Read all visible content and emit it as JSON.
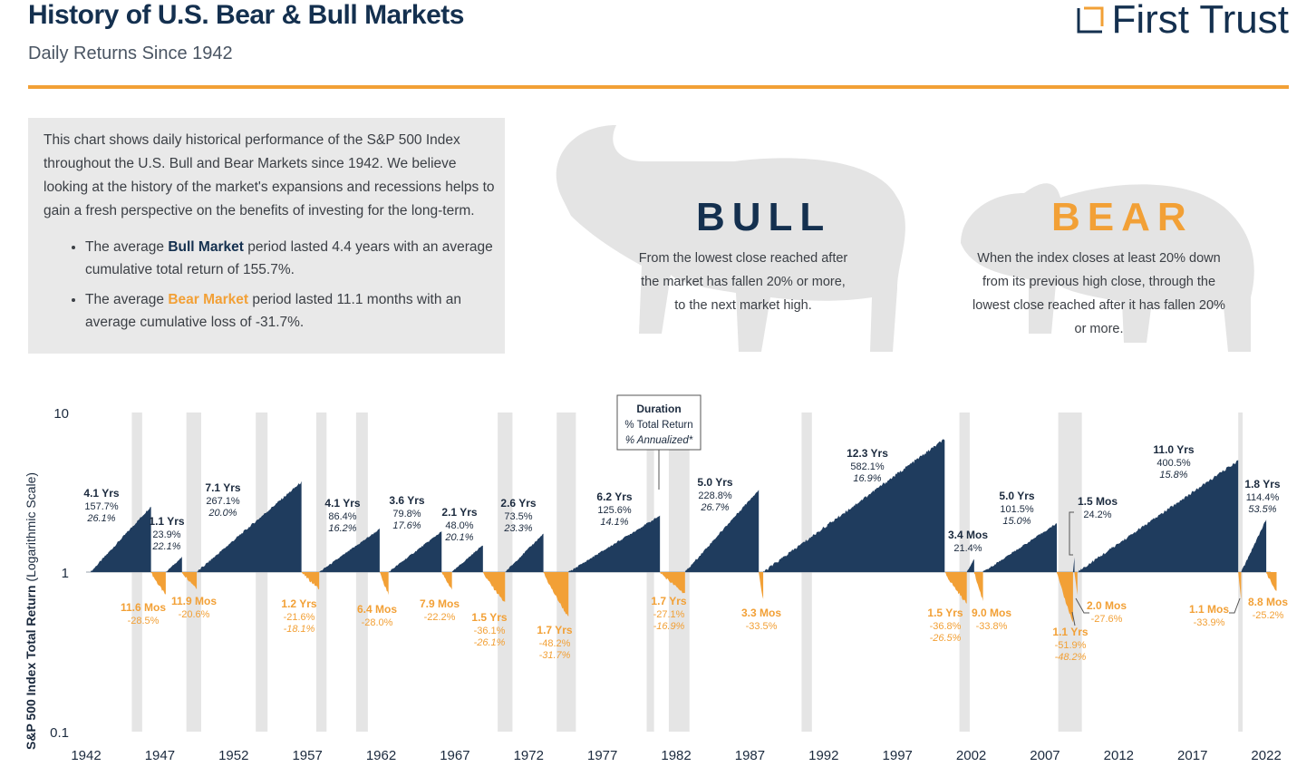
{
  "header": {
    "title": "History of U.S. Bear & Bull Markets",
    "subtitle": "Daily Returns Since 1942",
    "logo_text": "First Trust"
  },
  "intro": {
    "paragraph": "This chart shows daily historical performance of the S&P 500 Index throughout the U.S. Bull and Bear Markets since 1942. We believe looking at the history of the market's expansions and recessions helps to gain a fresh perspective on the benefits of investing for the long-term.",
    "bullet1_pre": "The average ",
    "bullet1_kw": "Bull Market",
    "bullet1_post": " period lasted 4.4 years with an average cumulative total return of 155.7%.",
    "bullet2_pre": "The average ",
    "bullet2_kw": "Bear Market",
    "bullet2_post": " period lasted 11.1 months with an average cumulative loss of -31.7%."
  },
  "definitions": {
    "bull_title": "BULL",
    "bull_text": "From the lowest close reached after the market has fallen 20% or more, to the next market high.",
    "bear_title": "BEAR",
    "bear_text": "When the index closes at least 20% down from its previous high close, through the lowest close reached after it has fallen 20% or more."
  },
  "colors": {
    "bull": "#1f3c5e",
    "bear": "#f2a036",
    "recession": "#e5e5e5",
    "accent": "#f2a036"
  },
  "chart_data": {
    "type": "area",
    "ylabel": "S&P 500 Index Total Return",
    "ylabel_note": "(Logarithmic Scale)",
    "y_scale": "log",
    "ylim": [
      0.1,
      10
    ],
    "y_ticks": [
      "10",
      "1",
      "0.1"
    ],
    "x_ticks": [
      "1942",
      "1947",
      "1952",
      "1957",
      "1962",
      "1967",
      "1972",
      "1977",
      "1982",
      "1987",
      "1992",
      "1997",
      "2002",
      "2007",
      "2012",
      "2017",
      "2022"
    ],
    "legend_box": [
      "Duration",
      "% Total Return",
      "% Annualized*"
    ],
    "recession_shading": [
      [
        1945.1,
        1945.8
      ],
      [
        1948.8,
        1949.8
      ],
      [
        1953.5,
        1954.3
      ],
      [
        1957.6,
        1958.3
      ],
      [
        1960.3,
        1961.1
      ],
      [
        1969.9,
        1970.9
      ],
      [
        1973.9,
        1975.2
      ],
      [
        1980.0,
        1980.5
      ],
      [
        1981.5,
        1982.9
      ],
      [
        1990.5,
        1991.2
      ],
      [
        2001.2,
        2001.9
      ],
      [
        2007.9,
        2009.5
      ],
      [
        2020.1,
        2020.4
      ]
    ],
    "bull_markets": [
      {
        "start": 1942.3,
        "end": 1946.4,
        "duration": "4.1 Yrs",
        "total": "157.7%",
        "annualized": "26.1%",
        "peak": 2.58
      },
      {
        "start": 1947.4,
        "end": 1948.5,
        "duration": "1.1 Yrs",
        "total": "23.9%",
        "annualized": "22.1%",
        "peak": 1.24
      },
      {
        "start": 1949.5,
        "end": 1956.6,
        "duration": "7.1 Yrs",
        "total": "267.1%",
        "annualized": "20.0%",
        "peak": 3.67
      },
      {
        "start": 1957.8,
        "end": 1961.9,
        "duration": "4.1 Yrs",
        "total": "86.4%",
        "annualized": "16.2%",
        "peak": 1.86
      },
      {
        "start": 1962.5,
        "end": 1966.1,
        "duration": "3.6 Yrs",
        "total": "79.8%",
        "annualized": "17.6%",
        "peak": 1.8
      },
      {
        "start": 1966.8,
        "end": 1968.9,
        "duration": "2.1 Yrs",
        "total": "48.0%",
        "annualized": "20.1%",
        "peak": 1.48
      },
      {
        "start": 1970.4,
        "end": 1973.0,
        "duration": "2.6 Yrs",
        "total": "73.5%",
        "annualized": "23.3%",
        "peak": 1.74
      },
      {
        "start": 1974.7,
        "end": 1980.9,
        "duration": "6.2 Yrs",
        "total": "125.6%",
        "annualized": "14.1%",
        "peak": 2.26
      },
      {
        "start": 1982.6,
        "end": 1987.6,
        "duration": "5.0 Yrs",
        "total": "228.8%",
        "annualized": "26.7%",
        "peak": 3.29
      },
      {
        "start": 1987.9,
        "end": 2000.2,
        "duration": "12.3 Yrs",
        "total": "582.1%",
        "annualized": "16.9%",
        "peak": 6.82
      },
      {
        "start": 2001.7,
        "end": 2002.2,
        "duration": "3.4 Mos",
        "total": "21.4%",
        "annualized": "",
        "peak": 1.21
      },
      {
        "start": 2002.8,
        "end": 2007.8,
        "duration": "5.0 Yrs",
        "total": "101.5%",
        "annualized": "15.0%",
        "peak": 2.02
      },
      {
        "start": 2008.9,
        "end": 2009.0,
        "duration": "1.5 Mos",
        "total": "24.2%",
        "annualized": "",
        "peak": 1.24
      },
      {
        "start": 2009.2,
        "end": 2020.1,
        "duration": "11.0 Yrs",
        "total": "400.5%",
        "annualized": "15.8%",
        "peak": 5.0
      },
      {
        "start": 2020.3,
        "end": 2022.0,
        "duration": "1.8 Yrs",
        "total": "114.4%",
        "annualized": "53.5%",
        "peak": 2.14
      }
    ],
    "bear_markets": [
      {
        "start": 1946.4,
        "end": 1947.4,
        "duration": "11.6 Mos",
        "total": "-28.5%",
        "annualized": "",
        "trough": 0.715
      },
      {
        "start": 1948.5,
        "end": 1949.5,
        "duration": "11.9 Mos",
        "total": "-20.6%",
        "annualized": "",
        "trough": 0.794
      },
      {
        "start": 1956.6,
        "end": 1957.8,
        "duration": "1.2 Yrs",
        "total": "-21.6%",
        "annualized": "-18.1%",
        "trough": 0.784
      },
      {
        "start": 1961.9,
        "end": 1962.5,
        "duration": "6.4 Mos",
        "total": "-28.0%",
        "annualized": "",
        "trough": 0.72
      },
      {
        "start": 1966.1,
        "end": 1966.8,
        "duration": "7.9 Mos",
        "total": "-22.2%",
        "annualized": "",
        "trough": 0.778
      },
      {
        "start": 1968.9,
        "end": 1970.4,
        "duration": "1.5 Yrs",
        "total": "-36.1%",
        "annualized": "-26.1%",
        "trough": 0.639
      },
      {
        "start": 1973.0,
        "end": 1974.7,
        "duration": "1.7 Yrs",
        "total": "-48.2%",
        "annualized": "-31.7%",
        "trough": 0.518
      },
      {
        "start": 1980.9,
        "end": 1982.6,
        "duration": "1.7 Yrs",
        "total": "-27.1%",
        "annualized": "-16.9%",
        "trough": 0.729
      },
      {
        "start": 1987.6,
        "end": 1987.9,
        "duration": "3.3 Mos",
        "total": "-33.5%",
        "annualized": "",
        "trough": 0.665
      },
      {
        "start": 2000.2,
        "end": 2001.7,
        "duration": "1.5 Yrs",
        "total": "-36.8%",
        "annualized": "-26.5%",
        "trough": 0.632
      },
      {
        "start": 2002.2,
        "end": 2002.8,
        "duration": "9.0 Mos",
        "total": "-33.8%",
        "annualized": "",
        "trough": 0.662
      },
      {
        "start": 2007.8,
        "end": 2008.9,
        "duration": "1.1 Yrs",
        "total": "-51.9%",
        "annualized": "-48.2%",
        "trough": 0.481
      },
      {
        "start": 2009.0,
        "end": 2009.2,
        "duration": "2.0 Mos",
        "total": "-27.6%",
        "annualized": "",
        "trough": 0.724
      },
      {
        "start": 2020.1,
        "end": 2020.3,
        "duration": "1.1 Mos",
        "total": "-33.9%",
        "annualized": "",
        "trough": 0.661
      },
      {
        "start": 2022.0,
        "end": 2022.7,
        "duration": "8.8 Mos",
        "total": "-25.2%",
        "annualized": "",
        "trough": 0.748
      }
    ]
  }
}
